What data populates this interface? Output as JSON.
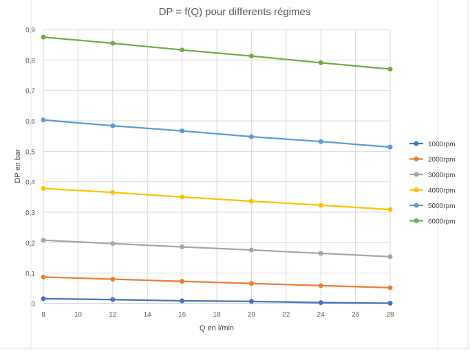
{
  "chart_data": {
    "type": "line",
    "title": "DP = f(Q) pour differents régimes",
    "xlabel": "Q en l/min",
    "ylabel": "DP en bar",
    "xlim": [
      8,
      28
    ],
    "ylim": [
      0,
      0.9
    ],
    "x_ticks": [
      8,
      10,
      12,
      14,
      16,
      18,
      20,
      22,
      24,
      26,
      28
    ],
    "y_ticks": [
      "0",
      "0,1",
      "0,2",
      "0,3",
      "0,4",
      "0,5",
      "0,6",
      "0,7",
      "0,8",
      "0,9"
    ],
    "grid": true,
    "legend_position": "right",
    "x": [
      8,
      12,
      16,
      20,
      24,
      28
    ],
    "series": [
      {
        "name": "1000rpm",
        "color": "#4472C4",
        "values": [
          0.016,
          0.013,
          0.009,
          0.007,
          0.003,
          0.001
        ]
      },
      {
        "name": "2000rpm",
        "color": "#ED7D31",
        "values": [
          0.087,
          0.08,
          0.073,
          0.066,
          0.059,
          0.052
        ]
      },
      {
        "name": "3000rpm",
        "color": "#A5A5A5",
        "values": [
          0.208,
          0.197,
          0.186,
          0.176,
          0.165,
          0.154
        ]
      },
      {
        "name": "4000rpm",
        "color": "#FFC000",
        "values": [
          0.378,
          0.365,
          0.35,
          0.336,
          0.323,
          0.309
        ]
      },
      {
        "name": "5000rpm",
        "color": "#5B9BD5",
        "values": [
          0.603,
          0.584,
          0.567,
          0.548,
          0.532,
          0.514
        ]
      },
      {
        "name": "6000rpm",
        "color": "#70AD47",
        "values": [
          0.875,
          0.855,
          0.833,
          0.813,
          0.791,
          0.77
        ]
      }
    ]
  }
}
